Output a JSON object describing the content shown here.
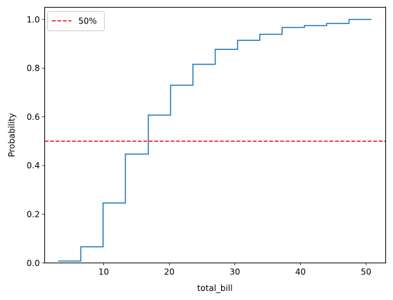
{
  "chart_data": {
    "type": "line",
    "step": true,
    "xlabel": "total_bill",
    "ylabel": "Probability",
    "xlim": [
      1.0,
      53.0
    ],
    "ylim": [
      0.0,
      1.05
    ],
    "xticks": [
      10,
      20,
      30,
      40,
      50
    ],
    "yticks": [
      0.0,
      0.2,
      0.4,
      0.6,
      0.8,
      1.0
    ],
    "grid": false,
    "series": [
      {
        "color": "#1f77b4",
        "x": [
          3.07,
          6.5,
          9.9,
          13.3,
          16.8,
          20.2,
          23.6,
          27.0,
          30.4,
          33.8,
          37.2,
          40.6,
          44.0,
          47.4,
          50.81
        ],
        "y": [
          0.008,
          0.066,
          0.246,
          0.447,
          0.607,
          0.73,
          0.816,
          0.877,
          0.914,
          0.939,
          0.967,
          0.975,
          0.984,
          1.0,
          1.0
        ]
      }
    ],
    "reference_line": {
      "orientation": "horizontal",
      "value": 0.5,
      "color": "#ff0000",
      "style": "dashed",
      "label": "50%"
    },
    "legend": {
      "position": "top-left",
      "entries": [
        "50%"
      ]
    }
  }
}
